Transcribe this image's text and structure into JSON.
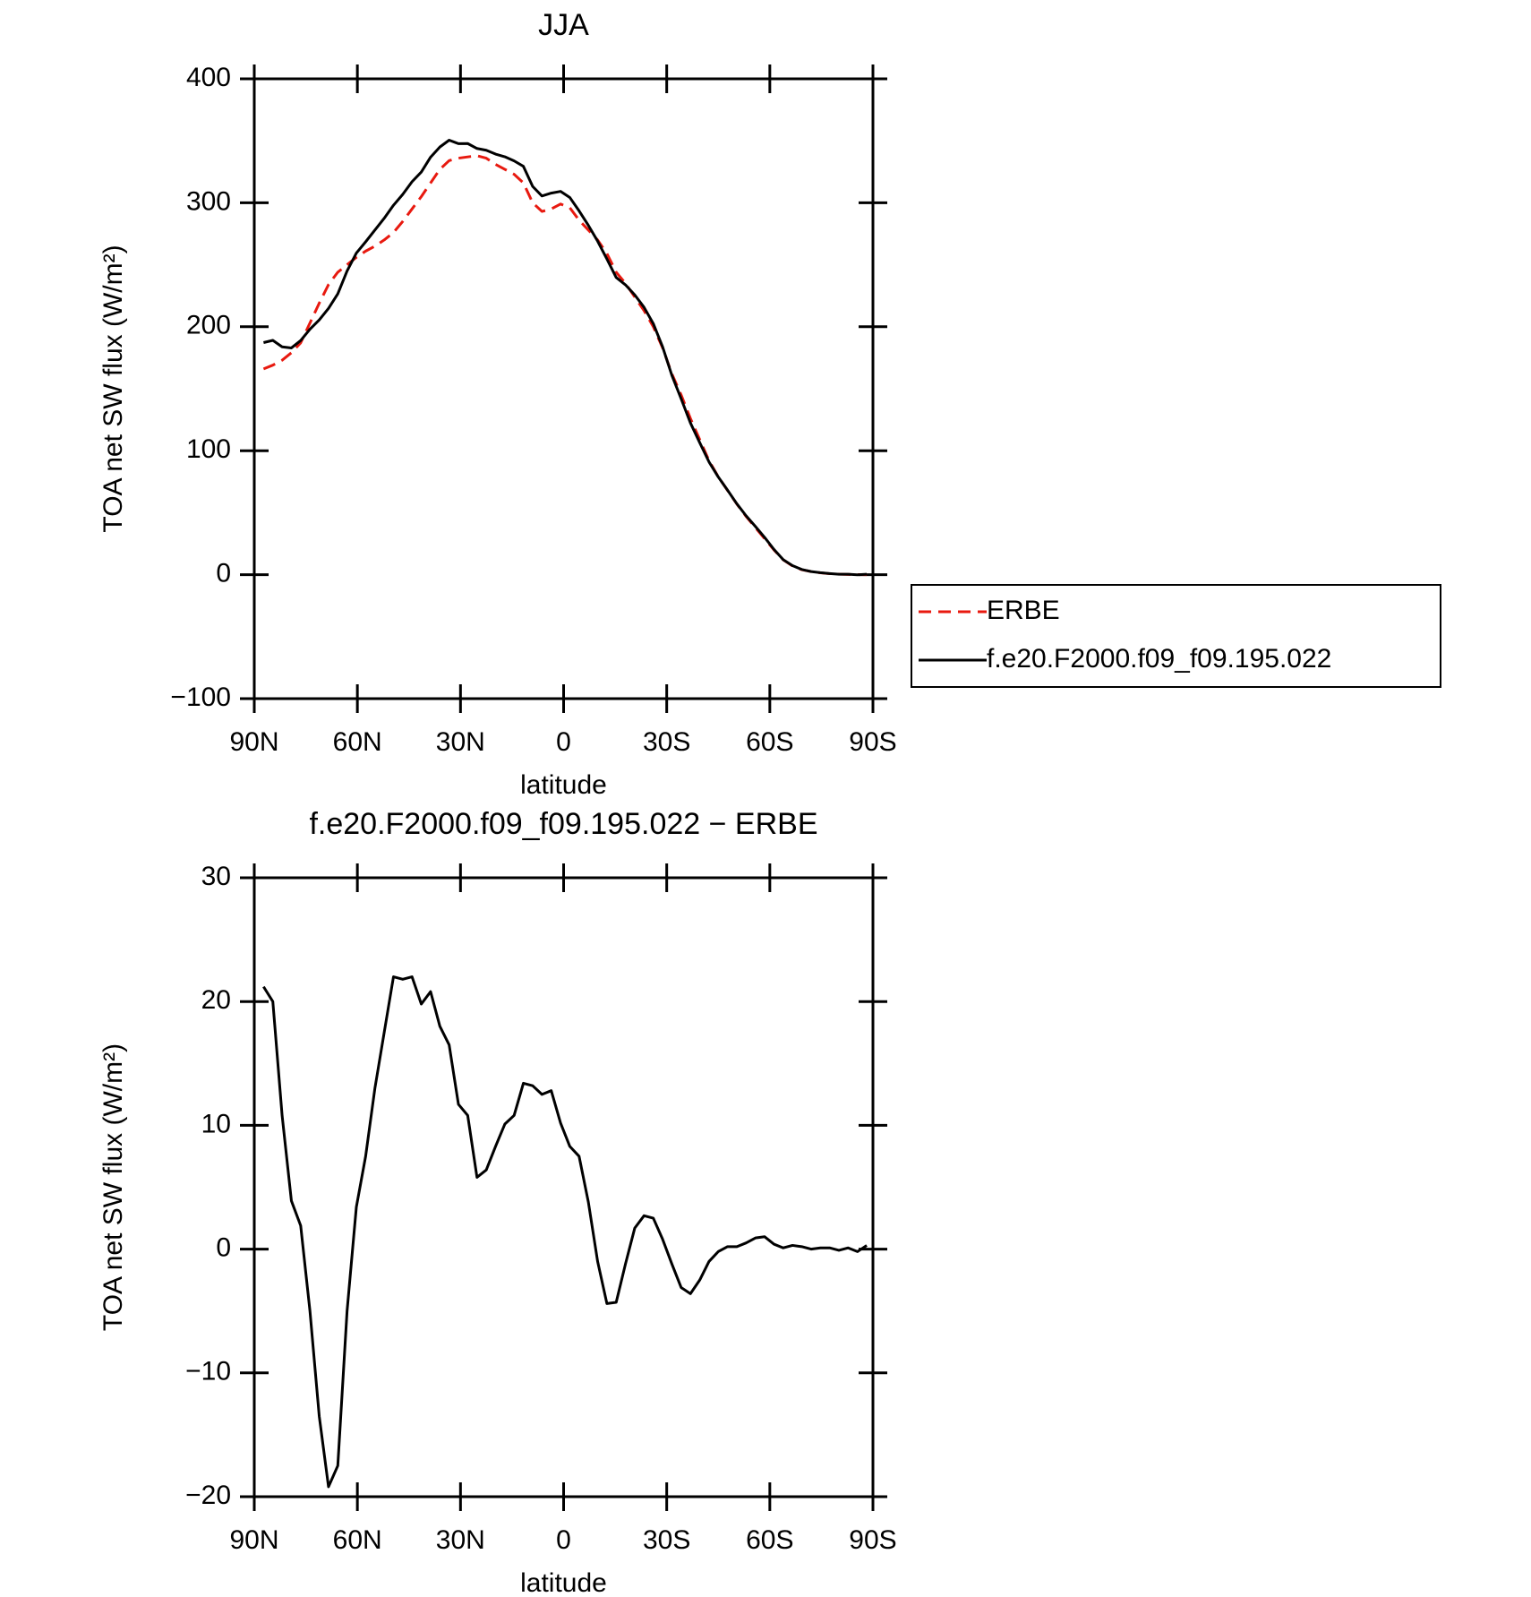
{
  "chart_data": [
    {
      "type": "line",
      "title": "JJA",
      "xlabel": "latitude",
      "ylabel": "TOA net SW flux (W/m²)",
      "x": [
        87.3,
        84.6,
        81.9,
        79.2,
        76.5,
        73.8,
        71.1,
        68.4,
        65.7,
        63.0,
        60.3,
        57.6,
        54.9,
        52.2,
        49.5,
        46.8,
        44.1,
        41.4,
        38.7,
        36.0,
        33.3,
        30.6,
        27.9,
        25.2,
        22.5,
        19.8,
        17.1,
        14.4,
        11.7,
        9.0,
        6.3,
        3.6,
        0.9,
        -1.8,
        -4.5,
        -7.2,
        -9.9,
        -12.6,
        -15.3,
        -18.0,
        -20.7,
        -23.4,
        -26.1,
        -28.8,
        -31.5,
        -34.2,
        -36.9,
        -39.6,
        -42.3,
        -45.0,
        -47.7,
        -50.4,
        -53.1,
        -55.8,
        -58.5,
        -61.2,
        -63.9,
        -66.6,
        -69.3,
        -72.0,
        -74.7,
        -77.4,
        -80.1,
        -82.8,
        -85.5,
        -88.2
      ],
      "series": [
        {
          "name": "ERBE",
          "color": "#e8190f",
          "line_style": "dashed",
          "values": [
            166,
            169,
            173,
            179,
            187,
            203,
            219,
            234,
            244,
            250,
            256,
            261,
            265,
            270,
            276,
            285,
            295,
            305,
            316,
            327,
            334,
            336,
            337,
            338,
            336,
            331,
            327,
            323,
            316,
            300,
            293,
            295,
            299,
            296,
            286,
            278,
            270,
            259,
            244,
            235,
            224,
            213,
            200,
            183,
            162,
            145,
            126,
            109,
            92,
            79,
            68,
            57,
            47,
            38,
            29,
            20,
            12,
            7,
            4,
            2.5,
            1.5,
            0.8,
            0.4,
            0.2,
            0.1,
            0
          ]
        },
        {
          "name": "f.e20.F2000.f09_f09.195.022",
          "color": "#000000",
          "line_style": "solid",
          "values": [
            187.2,
            189,
            183.8,
            182.9,
            188.9,
            198,
            205.5,
            214.8,
            226.5,
            245,
            259.4,
            268.5,
            278,
            287.5,
            298,
            306.8,
            317,
            324.8,
            336.8,
            345,
            350.5,
            347.7,
            347.8,
            343.8,
            342.4,
            339.3,
            337.1,
            333.8,
            329.4,
            313.2,
            305.5,
            307.8,
            309.2,
            304.3,
            293.5,
            281.8,
            269,
            254.6,
            239.7,
            233.8,
            225.7,
            215.7,
            202.5,
            183.8,
            160.8,
            141.9,
            122.4,
            106.5,
            91,
            78.8,
            68.2,
            57.2,
            47.5,
            38.9,
            30,
            20.4,
            12.1,
            7.3,
            4.2,
            2.5,
            1.6,
            0.9,
            0.3,
            0.3,
            -0.1,
            0.3
          ]
        }
      ],
      "xlim": [
        90,
        -90
      ],
      "xticks": [
        {
          "value": 90,
          "label": "90N"
        },
        {
          "value": 60,
          "label": "60N"
        },
        {
          "value": 30,
          "label": "30N"
        },
        0,
        {
          "value": -30,
          "label": "30S"
        },
        {
          "value": -60,
          "label": "60S"
        },
        {
          "value": -90,
          "label": "90S"
        }
      ],
      "ylim": [
        -100,
        400
      ],
      "yticks": [
        {
          "value": -100,
          "label": "−100"
        },
        0,
        100,
        200,
        300,
        400
      ],
      "legend": "right"
    },
    {
      "type": "line",
      "title": "f.e20.F2000.f09_f09.195.022 − ERBE",
      "xlabel": "latitude",
      "ylabel": "TOA net SW flux (W/m²)",
      "x": [
        87.3,
        84.6,
        81.9,
        79.2,
        76.5,
        73.8,
        71.1,
        68.4,
        65.7,
        63.0,
        60.3,
        57.6,
        54.9,
        52.2,
        49.5,
        46.8,
        44.1,
        41.4,
        38.7,
        36.0,
        33.3,
        30.6,
        27.9,
        25.2,
        22.5,
        19.8,
        17.1,
        14.4,
        11.7,
        9.0,
        6.3,
        3.6,
        0.9,
        -1.8,
        -4.5,
        -7.2,
        -9.9,
        -12.6,
        -15.3,
        -18.0,
        -20.7,
        -23.4,
        -26.1,
        -28.8,
        -31.5,
        -34.2,
        -36.9,
        -39.6,
        -42.3,
        -45.0,
        -47.7,
        -50.4,
        -53.1,
        -55.8,
        -58.5,
        -61.2,
        -63.9,
        -66.6,
        -69.3,
        -72.0,
        -74.7,
        -77.4,
        -80.1,
        -82.8,
        -85.5,
        -88.2
      ],
      "series": [
        {
          "color": "#000000",
          "line_style": "solid",
          "values": [
            21.2,
            20.0,
            10.8,
            3.9,
            1.9,
            -5.0,
            -13.5,
            -19.2,
            -17.5,
            -5.0,
            3.4,
            7.5,
            13.0,
            17.5,
            22.0,
            21.8,
            22.0,
            19.8,
            20.8,
            18.0,
            16.5,
            11.7,
            10.8,
            5.8,
            6.4,
            8.3,
            10.1,
            10.8,
            13.4,
            13.2,
            12.5,
            12.8,
            10.2,
            8.3,
            7.5,
            3.8,
            -1.0,
            -4.4,
            -4.3,
            -1.2,
            1.7,
            2.7,
            2.5,
            0.8,
            -1.2,
            -3.1,
            -3.6,
            -2.5,
            -1.0,
            -0.2,
            0.2,
            0.2,
            0.5,
            0.9,
            1.0,
            0.4,
            0.1,
            0.3,
            0.2,
            0.0,
            0.1,
            0.1,
            -0.1,
            0.1,
            -0.2,
            0.3
          ]
        }
      ],
      "xlim": [
        90,
        -90
      ],
      "xticks": [
        {
          "value": 90,
          "label": "90N"
        },
        {
          "value": 60,
          "label": "60N"
        },
        {
          "value": 30,
          "label": "30N"
        },
        0,
        {
          "value": -30,
          "label": "30S"
        },
        {
          "value": -60,
          "label": "60S"
        },
        {
          "value": -90,
          "label": "90S"
        }
      ],
      "ylim": [
        -20,
        30
      ],
      "yticks": [
        {
          "value": -20,
          "label": "−20"
        },
        {
          "value": -10,
          "label": "−10"
        },
        0,
        10,
        20,
        30
      ]
    }
  ]
}
